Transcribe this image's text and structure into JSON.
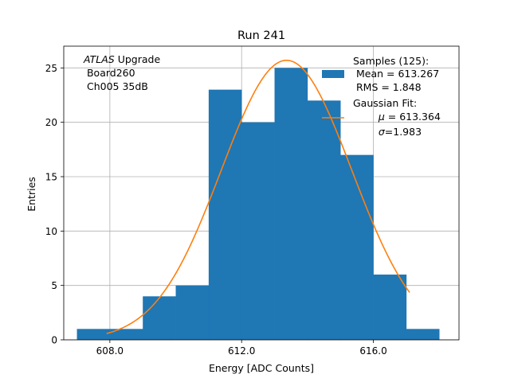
{
  "chart_data": {
    "type": "bar",
    "title": "Run 241",
    "xlabel": "Energy [ADC Counts]",
    "ylabel": "Entries",
    "xlim": [
      606.6,
      618.6
    ],
    "ylim": [
      0,
      27.0
    ],
    "grid": true,
    "x_ticks": [
      {
        "value": 608.0,
        "label": "608.0"
      },
      {
        "value": 612.0,
        "label": "612.0"
      },
      {
        "value": 616.0,
        "label": "616.0"
      }
    ],
    "y_ticks": [
      {
        "value": 0,
        "label": "0"
      },
      {
        "value": 5,
        "label": "5"
      },
      {
        "value": 10,
        "label": "10"
      },
      {
        "value": 15,
        "label": "15"
      },
      {
        "value": 20,
        "label": "20"
      },
      {
        "value": 25,
        "label": "25"
      }
    ],
    "annotation": {
      "italic": "ATLAS",
      "rest": " Upgrade",
      "line2": " Board260",
      "line3": " Ch005 35dB"
    },
    "histogram": {
      "name": "Samples (125):",
      "color": "#1f77b4",
      "bin_edges": [
        607,
        608,
        609,
        610,
        611,
        612,
        613,
        614,
        615,
        616,
        617,
        618
      ],
      "counts": [
        1,
        1,
        4,
        5,
        23,
        20,
        25,
        22,
        17,
        6,
        1
      ]
    },
    "fit": {
      "name": "Gaussian Fit:",
      "color": "#ff7f0e",
      "mu": 613.364,
      "sigma": 1.983,
      "amplitude": 25.7,
      "x_range": [
        607.9,
        617.1
      ]
    },
    "legend": {
      "position": "top-right",
      "hist_lines": [
        "Samples (125):",
        " Mean = 613.267",
        " RMS = 1.848"
      ],
      "fit_line1": "Gaussian Fit:",
      "fit_mu_symbol": "μ",
      "fit_mu_value": " = 613.364",
      "fit_sigma_symbol": "σ",
      "fit_sigma_value": "=1.983"
    }
  }
}
